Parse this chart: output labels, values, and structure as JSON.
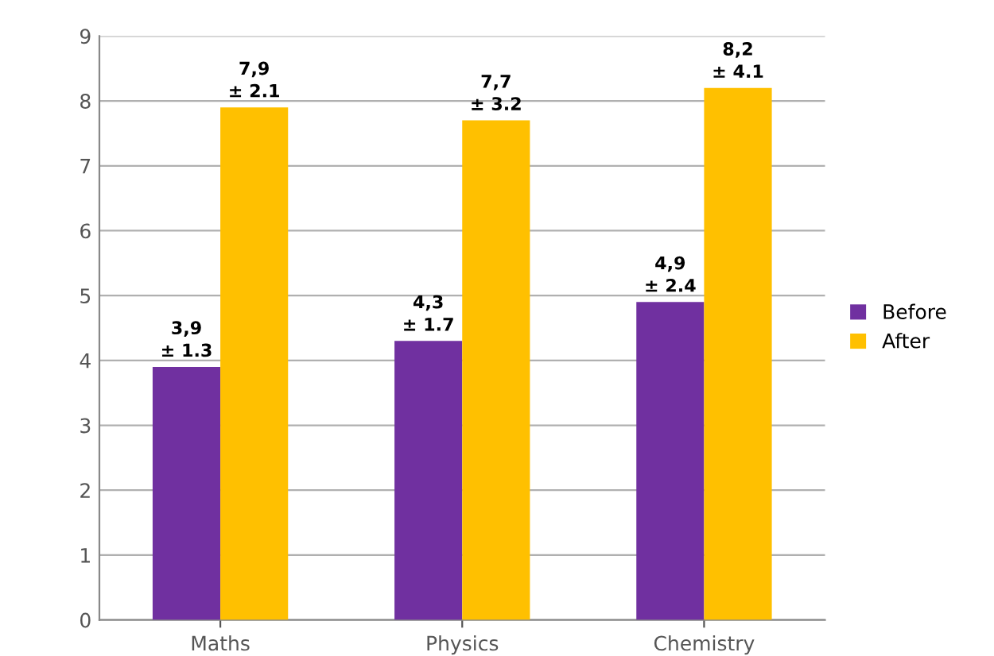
{
  "chart_data": {
    "type": "bar",
    "categories": [
      "Maths",
      "Physics",
      "Chemistry"
    ],
    "series": [
      {
        "name": "Before",
        "color": "#7030a0",
        "values": [
          3.9,
          4.3,
          4.9
        ],
        "value_labels": [
          "3,9\n± 1.3",
          "4,3\n± 1.7",
          "4,9\n± 2.4"
        ]
      },
      {
        "name": "After",
        "color": "#ffc000",
        "values": [
          7.9,
          7.7,
          8.2
        ],
        "value_labels": [
          "7,9\n± 2.1",
          "7,7\n± 3.2",
          "8,2\n± 4.1"
        ]
      }
    ],
    "ylim": [
      0,
      9
    ],
    "yticks": [
      0,
      1,
      2,
      3,
      4,
      5,
      6,
      7,
      8,
      9
    ],
    "grid": "y",
    "legend": "right"
  }
}
